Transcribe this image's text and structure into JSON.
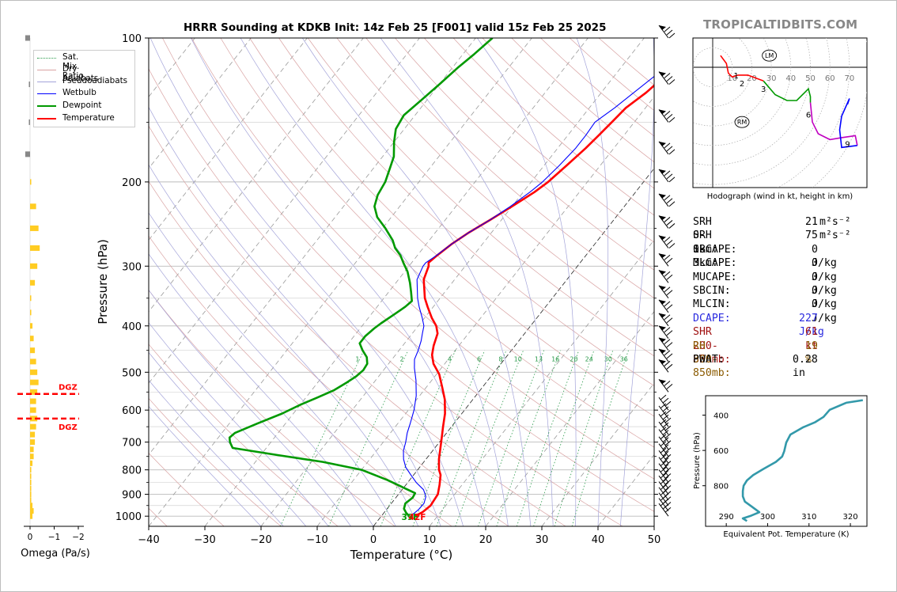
{
  "title": "HRRR Sounding at KDKB Init: 14z Feb 25 [F001] valid 15z Feb 25 2025",
  "brand": "TROPICALTIDBITS.COM",
  "legend": [
    {
      "label": "Sat. Mix. Ratio",
      "color": "#2a9a4a",
      "style": "dotted"
    },
    {
      "label": "Dry Adiabats",
      "color": "#d9a3a3",
      "style": "solid"
    },
    {
      "label": "Pseudoadiabats",
      "color": "#a3a3d9",
      "style": "solid"
    },
    {
      "label": "Wetbulb",
      "color": "#0000ff",
      "style": "solid"
    },
    {
      "label": "Dewpoint",
      "color": "#009900",
      "style": "solid"
    },
    {
      "label": "Temperature",
      "color": "#ff0000",
      "style": "solid"
    }
  ],
  "chart_data": [
    {
      "type": "line",
      "name": "skew-t",
      "xlabel": "Temperature (°C)",
      "ylabel": "Pressure (hPa)",
      "xlim": [
        -40,
        50
      ],
      "ylim": [
        1050,
        100
      ],
      "x_ticks": [
        "−40",
        "−30",
        "−20",
        "−10",
        "0",
        "10",
        "20",
        "30",
        "40",
        "50"
      ],
      "y_ticks": [
        "100",
        "200",
        "300",
        "400",
        "500",
        "600",
        "700",
        "800",
        "900",
        "1000"
      ],
      "mixing_ratio_labels": [
        "1",
        "2",
        "4",
        "6",
        "8",
        "10",
        "13",
        "16",
        "20",
        "24",
        "30",
        "36"
      ],
      "series": [
        {
          "name": "Temperature",
          "color": "#ff0000",
          "points": [
            [
              6.0,
              1000
            ],
            [
              6.8,
              980
            ],
            [
              7.3,
              950
            ],
            [
              7.0,
              900
            ],
            [
              6.0,
              860
            ],
            [
              4.8,
              820
            ],
            [
              3.8,
              800
            ],
            [
              2.3,
              760
            ],
            [
              1.0,
              720
            ],
            [
              -0.4,
              680
            ],
            [
              -1.5,
              650
            ],
            [
              -3.0,
              610
            ],
            [
              -5.0,
              570
            ],
            [
              -7.0,
              540
            ],
            [
              -9.5,
              505
            ],
            [
              -12.0,
              480
            ],
            [
              -13.5,
              460
            ],
            [
              -14.5,
              440
            ],
            [
              -15.5,
              415
            ],
            [
              -16.8,
              400
            ],
            [
              -18.7,
              385
            ],
            [
              -21.0,
              365
            ],
            [
              -22.7,
              350
            ],
            [
              -25.5,
              320
            ],
            [
              -26.5,
              300
            ],
            [
              -27.0,
              295
            ],
            [
              -26.5,
              285
            ],
            [
              -25.5,
              270
            ],
            [
              -24.0,
              255
            ],
            [
              -22.0,
              240
            ],
            [
              -20.0,
              225
            ],
            [
              -18.0,
              210
            ],
            [
              -17.0,
              200
            ],
            [
              -16.0,
              185
            ],
            [
              -15.0,
              170
            ],
            [
              -14.5,
              160
            ],
            [
              -14.0,
              150
            ],
            [
              -13.5,
              140
            ],
            [
              -12.0,
              130
            ],
            [
              -11.0,
              120
            ],
            [
              -10.0,
              110
            ],
            [
              -9.0,
              100
            ]
          ]
        },
        {
          "name": "Wetbulb",
          "color": "#0000ff",
          "points": [
            [
              5.2,
              1000
            ],
            [
              5.7,
              970
            ],
            [
              5.8,
              940
            ],
            [
              5.2,
              910
            ],
            [
              3.8,
              880
            ],
            [
              1.5,
              850
            ],
            [
              -0.5,
              820
            ],
            [
              -2.5,
              790
            ],
            [
              -4.0,
              760
            ],
            [
              -5.2,
              730
            ],
            [
              -6.0,
              700
            ],
            [
              -7.0,
              670
            ],
            [
              -7.8,
              640
            ],
            [
              -9.0,
              600
            ],
            [
              -10.6,
              560
            ],
            [
              -12.8,
              520
            ],
            [
              -14.8,
              490
            ],
            [
              -16.0,
              470
            ],
            [
              -16.6,
              450
            ],
            [
              -17.4,
              430
            ],
            [
              -18.2,
              415
            ],
            [
              -19.0,
              400
            ],
            [
              -20.4,
              385
            ],
            [
              -22.5,
              365
            ],
            [
              -24.0,
              350
            ],
            [
              -26.7,
              320
            ],
            [
              -27.5,
              300
            ],
            [
              -27.5,
              295
            ],
            [
              -26.6,
              285
            ],
            [
              -25.5,
              270
            ],
            [
              -24.0,
              255
            ],
            [
              -22.0,
              240
            ],
            [
              -20.3,
              225
            ],
            [
              -18.8,
              210
            ],
            [
              -18.0,
              200
            ],
            [
              -17.3,
              185
            ],
            [
              -16.8,
              170
            ],
            [
              -16.8,
              160
            ],
            [
              -17.0,
              150
            ],
            [
              -15.5,
              140
            ],
            [
              -14.2,
              130
            ],
            [
              -12.8,
              120
            ],
            [
              -11.5,
              110
            ],
            [
              -10.2,
              100
            ]
          ]
        },
        {
          "name": "Dewpoint",
          "color": "#009900",
          "points": [
            [
              5.0,
              1000
            ],
            [
              4.0,
              985
            ],
            [
              3.0,
              965
            ],
            [
              2.5,
              940
            ],
            [
              3.0,
              915
            ],
            [
              2.8,
              895
            ],
            [
              1.0,
              880
            ],
            [
              -4.0,
              840
            ],
            [
              -10.0,
              800
            ],
            [
              -18.0,
              770
            ],
            [
              -27.0,
              745
            ],
            [
              -36.0,
              720
            ],
            [
              -37.3,
              700
            ],
            [
              -38.0,
              685
            ],
            [
              -37.7,
              670
            ],
            [
              -35.0,
              640
            ],
            [
              -32.0,
              610
            ],
            [
              -30.0,
              585
            ],
            [
              -28.0,
              565
            ],
            [
              -26.0,
              545
            ],
            [
              -24.8,
              525
            ],
            [
              -24.0,
              510
            ],
            [
              -23.6,
              495
            ],
            [
              -23.8,
              480
            ],
            [
              -24.8,
              465
            ],
            [
              -26.5,
              450
            ],
            [
              -28.0,
              435
            ],
            [
              -28.0,
              420
            ],
            [
              -27.5,
              405
            ],
            [
              -27.0,
              395
            ],
            [
              -26.0,
              380
            ],
            [
              -25.0,
              365
            ],
            [
              -24.6,
              355
            ],
            [
              -26.0,
              340
            ],
            [
              -27.5,
              325
            ],
            [
              -29.5,
              308
            ],
            [
              -31.5,
              295
            ],
            [
              -33.0,
              285
            ],
            [
              -35.0,
              275
            ],
            [
              -36.5,
              265
            ],
            [
              -39.5,
              250
            ],
            [
              -42.5,
              237
            ],
            [
              -44.5,
              225
            ],
            [
              -45.5,
              213
            ],
            [
              -46.0,
              200
            ],
            [
              -47.0,
              188
            ],
            [
              -48.0,
              177
            ],
            [
              -50.0,
              165
            ],
            [
              -51.5,
              155
            ],
            [
              -52.0,
              145
            ],
            [
              -51.0,
              135
            ],
            [
              -50.0,
              125
            ],
            [
              -49.0,
              115
            ],
            [
              -48.0,
              108
            ],
            [
              -47.0,
              100
            ]
          ]
        }
      ]
    },
    {
      "type": "bar",
      "name": "omega",
      "xlabel": "Omega (Pa/s)",
      "x_ticks": [
        "0",
        "−1",
        "−2"
      ],
      "levels_hpa": [
        100,
        125,
        150,
        175,
        200,
        225,
        250,
        275,
        300,
        325,
        350,
        375,
        400,
        425,
        450,
        475,
        500,
        525,
        550,
        575,
        600,
        625,
        650,
        675,
        700,
        725,
        750,
        775,
        800,
        825,
        850,
        875,
        900,
        925,
        950,
        975,
        1000
      ],
      "values": [
        -0.2,
        -0.05,
        -0.05,
        -0.2,
        0.0,
        0.25,
        0.35,
        0.4,
        0.3,
        0.2,
        0.0,
        0.05,
        0.1,
        0.15,
        0.2,
        0.25,
        0.3,
        0.35,
        0.3,
        0.25,
        0.25,
        0.3,
        0.25,
        0.2,
        0.2,
        0.15,
        0.15,
        0.1,
        0.05,
        0.05,
        0.05,
        0.05,
        0.05,
        0.05,
        0.1,
        0.15,
        0.1
      ],
      "dgz_label": "DGZ",
      "dgz_levels_hpa": [
        555,
        625
      ]
    },
    {
      "type": "line",
      "name": "hodograph",
      "xlabel": "Hodograph (wind in kt, height in km)",
      "ring_labels": [
        "10",
        "20",
        "30",
        "40",
        "50",
        "60",
        "70"
      ],
      "height_labels": [
        "1",
        "2",
        "3",
        "6",
        "9"
      ],
      "markers": [
        "LM",
        "RM"
      ],
      "series": [
        {
          "name": "0-3 km",
          "color": "#ff0000",
          "points": [
            [
              4,
              6
            ],
            [
              7,
              2
            ],
            [
              8,
              -3
            ],
            [
              10,
              -5
            ],
            [
              13,
              -4
            ],
            [
              18,
              -4
            ],
            [
              26,
              -7
            ]
          ]
        },
        {
          "name": "3-6 km",
          "color": "#009900",
          "points": [
            [
              26,
              -7
            ],
            [
              32,
              -14
            ],
            [
              38,
              -17
            ],
            [
              43,
              -17
            ],
            [
              46,
              -14
            ],
            [
              49,
              -11
            ],
            [
              50,
              -15
            ],
            [
              50,
              -18
            ]
          ]
        },
        {
          "name": "6-9 km",
          "color": "#c000c0",
          "points": [
            [
              50,
              -18
            ],
            [
              51,
              -28
            ],
            [
              54,
              -34
            ],
            [
              60,
              -37
            ],
            [
              66,
              -36
            ],
            [
              73,
              -35
            ],
            [
              74,
              -40
            ]
          ]
        },
        {
          "name": "9+ km",
          "color": "#0000ff",
          "points": [
            [
              74,
              -40
            ],
            [
              66,
              -41
            ],
            [
              65,
              -32
            ],
            [
              66,
              -25
            ],
            [
              70,
              -16
            ],
            [
              69,
              -19
            ]
          ]
        }
      ]
    },
    {
      "type": "line",
      "name": "theta-e",
      "xlabel": "Equivalent Pot. Temperature (K)",
      "ylabel": "Pressure (hPa)",
      "x_ticks": [
        "290",
        "300",
        "310",
        "320"
      ],
      "y_ticks": [
        "400",
        "600",
        "800"
      ],
      "xlim": [
        285,
        324
      ],
      "ylim": [
        1030,
        290
      ],
      "color": "#3399aa",
      "points": [
        [
          295,
          1000
        ],
        [
          294,
          985
        ],
        [
          296,
          970
        ],
        [
          298,
          950
        ],
        [
          296,
          915
        ],
        [
          294.5,
          890
        ],
        [
          294,
          860
        ],
        [
          294,
          830
        ],
        [
          294.2,
          800
        ],
        [
          295,
          770
        ],
        [
          296.5,
          740
        ],
        [
          299,
          705
        ],
        [
          302,
          665
        ],
        [
          303.5,
          635
        ],
        [
          304,
          605
        ],
        [
          304.5,
          555
        ],
        [
          305.5,
          510
        ],
        [
          308.5,
          470
        ],
        [
          311.5,
          440
        ],
        [
          313.5,
          410
        ],
        [
          315,
          370
        ],
        [
          319,
          330
        ],
        [
          323,
          315
        ]
      ]
    }
  ],
  "stats": [
    {
      "label": "SRH 0-1km:",
      "value": "21",
      "unit": " m²s⁻²",
      "color": "#000000"
    },
    {
      "label": "SRH 0-3km:",
      "value": "75",
      "unit": " m²s⁻²",
      "color": "#000000"
    },
    {
      "label": "SBCAPE:",
      "value": "0 J/kg",
      "color": "#000000"
    },
    {
      "label": "MLCAPE:",
      "value": "0 J/kg",
      "color": "#000000"
    },
    {
      "label": "MUCAPE:",
      "value": "0 J/kg",
      "color": "#000000"
    },
    {
      "label": "SBCIN:",
      "value": "0 J/kg",
      "color": "#000000"
    },
    {
      "label": "MLCIN:",
      "value": "0 J/kg",
      "color": "#000000"
    },
    {
      "label": "DCAPE:",
      "value": "227 J/kg",
      "color": "#2a2adf"
    },
    {
      "label": "SHR 200-850mb:",
      "value": "61 kt",
      "color": "#a01010"
    },
    {
      "label": "RH 300-850mb:",
      "value": "19 %",
      "color": "#8a5a00"
    },
    {
      "label": "PWAT:",
      "value": "0.28 in",
      "color": "#000000"
    }
  ],
  "surface_labels": {
    "dewpoint": "39F",
    "temperature": "42F"
  }
}
